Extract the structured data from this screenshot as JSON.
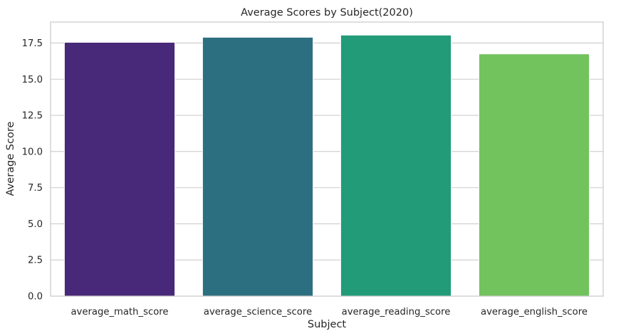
{
  "chart_data": {
    "type": "bar",
    "title": "Average Scores by Subject(2020)",
    "xlabel": "Subject",
    "ylabel": "Average Score",
    "categories": [
      "average_math_score",
      "average_science_score",
      "average_reading_score",
      "average_english_score"
    ],
    "values": [
      17.55,
      17.9,
      18.05,
      16.75
    ],
    "colors": [
      "#482878",
      "#2c6f80",
      "#229b78",
      "#72c35e"
    ],
    "ylim": [
      0,
      18.95
    ],
    "yticks": [
      0.0,
      2.5,
      5.0,
      7.5,
      10.0,
      12.5,
      15.0,
      17.5
    ],
    "ytick_labels": [
      "0.0",
      "2.5",
      "5.0",
      "7.5",
      "10.0",
      "12.5",
      "15.0",
      "17.5"
    ],
    "grid": "horizontal",
    "palette": "viridis"
  }
}
